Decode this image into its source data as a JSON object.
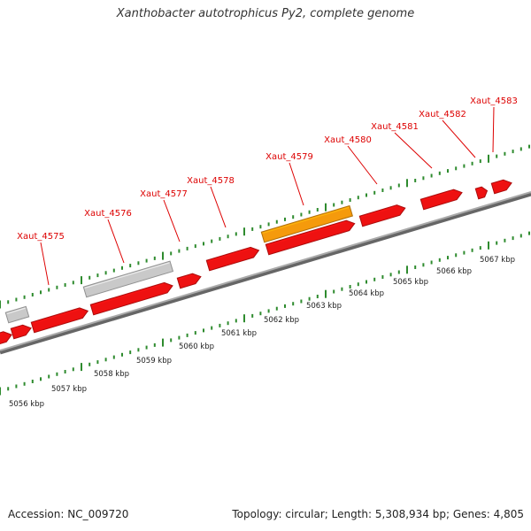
{
  "title": "Xanthobacter autotrophicus Py2, complete genome",
  "footer": {
    "accession": "Accession: NC_009720",
    "summary": "Topology: circular; Length: 5,308,934 bp; Genes: 4,805"
  },
  "colors": {
    "gene": "#ee1111",
    "highlighted_gene": "#f59a0c",
    "rna_gene": "#c9c9c9",
    "backbone": "#888888",
    "tick": "#2e8b2e",
    "label": "#dd0000"
  },
  "gene_labels": [
    "Xaut_4575",
    "Xaut_4576",
    "Xaut_4577",
    "Xaut_4578",
    "Xaut_4579",
    "Xaut_4580",
    "Xaut_4581",
    "Xaut_4582",
    "Xaut_4583"
  ],
  "ruler_labels": [
    "5056 kbp",
    "5057 kbp",
    "5058 kbp",
    "5059 kbp",
    "5060 kbp",
    "5061 kbp",
    "5062 kbp",
    "5063 kbp",
    "5064 kbp",
    "5065 kbp",
    "5066 kbp",
    "5067 kbp"
  ]
}
